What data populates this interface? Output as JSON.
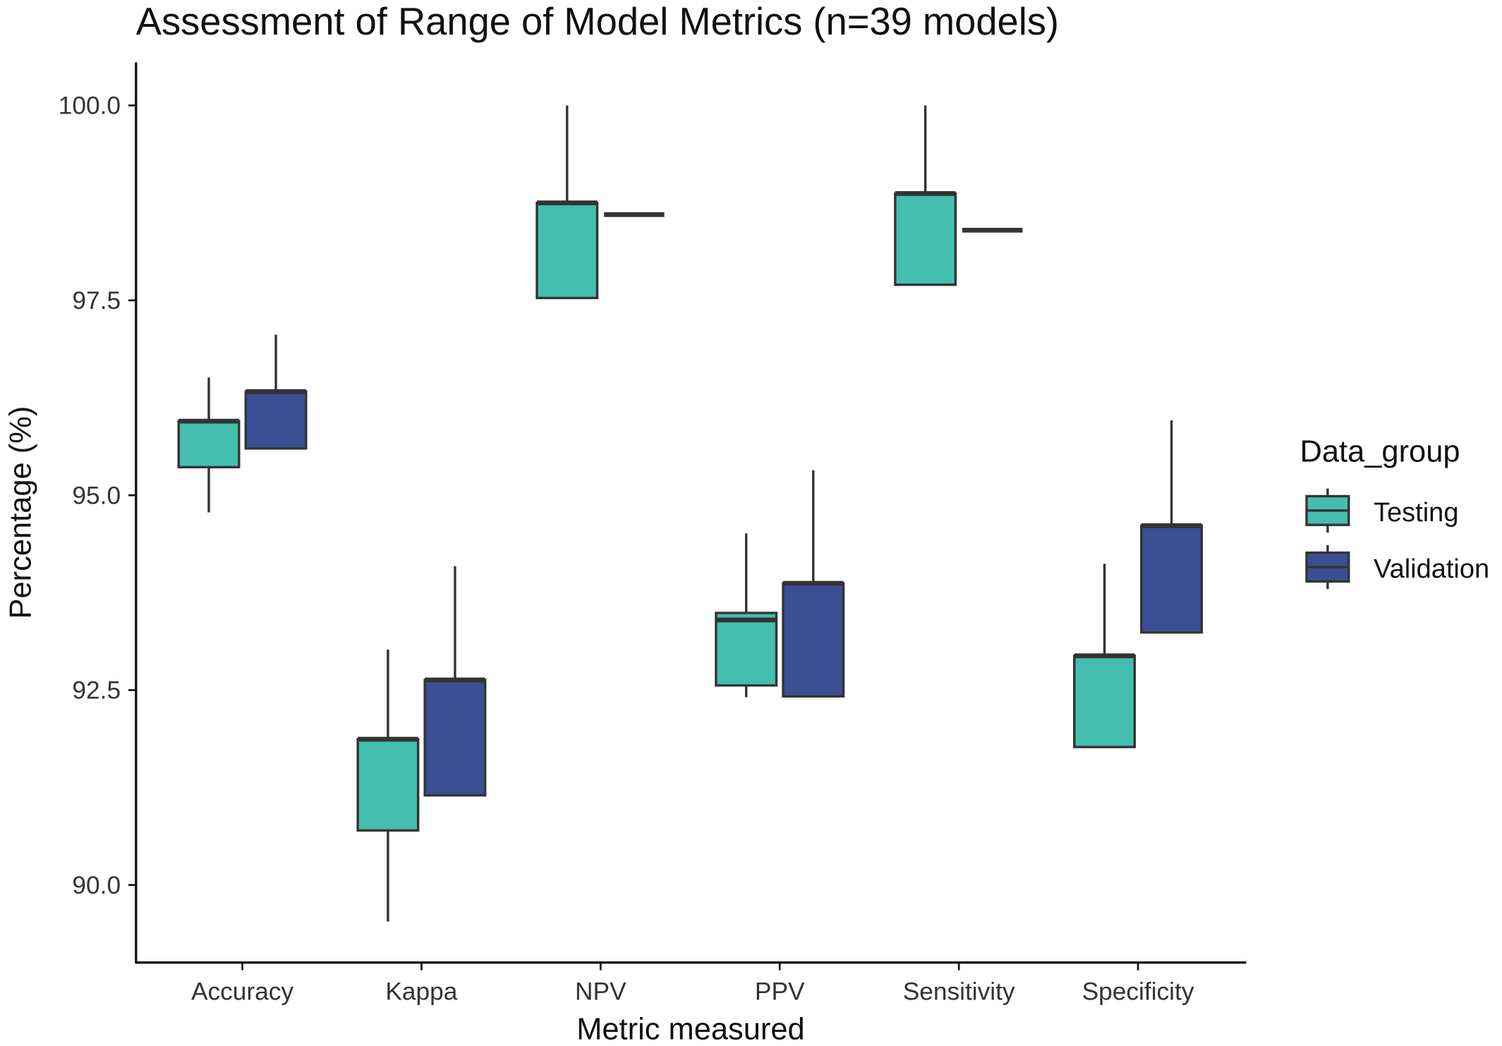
{
  "chart_data": {
    "type": "boxplot",
    "title": "Assessment of Range of Model Metrics (n=39 models)",
    "xlabel": "Metric measured",
    "ylabel": "Percentage (%)",
    "ylim": [
      89.0,
      100.55
    ],
    "yticks": [
      90.0,
      92.5,
      95.0,
      97.5,
      100.0
    ],
    "ytick_labels": [
      "90.0",
      "92.5",
      "95.0",
      "97.5",
      "100.0"
    ],
    "grid": false,
    "categories": [
      "Accuracy",
      "Kappa",
      "NPV",
      "PPV",
      "Sensitivity",
      "Specificity"
    ],
    "legend": {
      "title": "Data_group",
      "placement": "right"
    },
    "series": [
      {
        "name": "Testing",
        "color": "#44BEAE",
        "boxes": [
          {
            "min": 94.78,
            "q1": 95.36,
            "median": 95.95,
            "q3": 95.95,
            "max": 96.51
          },
          {
            "min": 89.53,
            "q1": 90.7,
            "median": 91.87,
            "q3": 91.87,
            "max": 93.02
          },
          {
            "min": 97.53,
            "q1": 97.53,
            "median": 98.75,
            "q3": 98.75,
            "max": 100.0
          },
          {
            "min": 92.41,
            "q1": 92.56,
            "median": 93.4,
            "q3": 93.49,
            "max": 94.51
          },
          {
            "min": 97.7,
            "q1": 97.7,
            "median": 98.87,
            "q3": 98.87,
            "max": 100.0
          },
          {
            "min": 91.77,
            "q1": 91.77,
            "median": 92.94,
            "q3": 92.94,
            "max": 94.12
          }
        ]
      },
      {
        "name": "Validation",
        "color": "#3A4F94",
        "boxes": [
          {
            "min": 95.6,
            "q1": 95.6,
            "median": 96.33,
            "q3": 96.33,
            "max": 97.06
          },
          {
            "min": 91.15,
            "q1": 91.15,
            "median": 92.63,
            "q3": 92.63,
            "max": 94.09
          },
          {
            "min": 98.6,
            "q1": 98.6,
            "median": 98.6,
            "q3": 98.6,
            "max": 98.6
          },
          {
            "min": 92.42,
            "q1": 92.42,
            "median": 93.87,
            "q3": 93.87,
            "max": 95.32
          },
          {
            "min": 98.4,
            "q1": 98.4,
            "median": 98.4,
            "q3": 98.4,
            "max": 98.4
          },
          {
            "min": 93.24,
            "q1": 93.24,
            "median": 94.61,
            "q3": 94.61,
            "max": 95.96
          }
        ]
      }
    ]
  }
}
